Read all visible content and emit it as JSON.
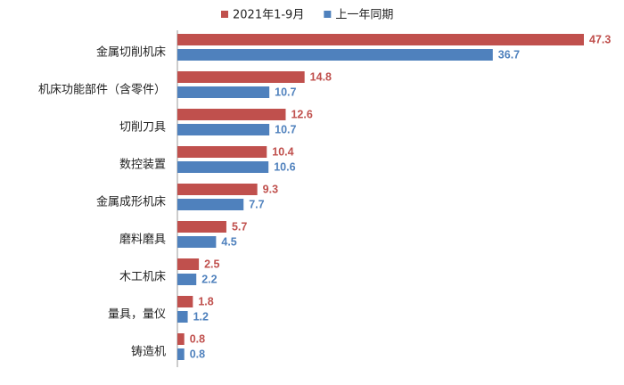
{
  "chart_data": {
    "type": "bar",
    "orientation": "horizontal",
    "categories": [
      "金属切削机床",
      "机床功能部件（含零件）",
      "切削刀具",
      "数控装置",
      "金属成形机床",
      "磨料磨具",
      "木工机床",
      "量具，量仪",
      "铸造机"
    ],
    "series": [
      {
        "name": "2021年1-9月",
        "color": "#c0504d",
        "values": [
          47.3,
          14.8,
          12.6,
          10.4,
          9.3,
          5.7,
          2.5,
          1.8,
          0.8
        ]
      },
      {
        "name": "上一年同期",
        "color": "#4f81bd",
        "values": [
          36.7,
          10.7,
          10.7,
          10.6,
          7.7,
          4.5,
          2.2,
          1.2,
          0.8
        ]
      }
    ],
    "legend": "top"
  }
}
